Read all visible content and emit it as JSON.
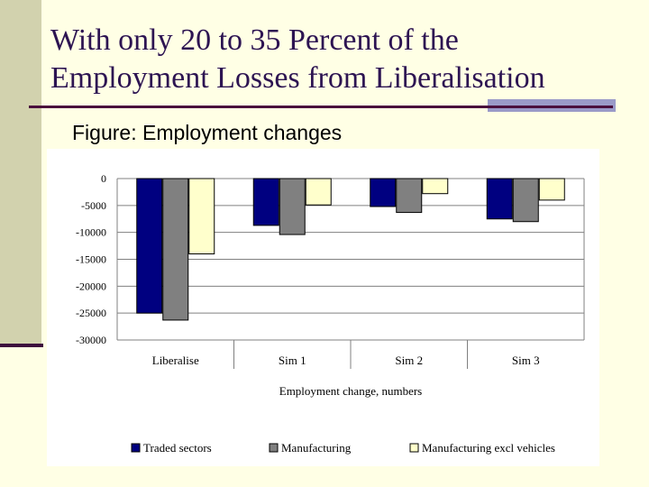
{
  "slide": {
    "title_line1": "With only 20 to 35 Percent of  the",
    "title_line2": "Employment Losses from Liberalisation",
    "subtitle": "Figure: Employment changes"
  },
  "chart_data": {
    "type": "bar",
    "title": "",
    "xlabel": "Employment change, numbers",
    "ylabel": "",
    "ylim": [
      -30000,
      0
    ],
    "yticks": [
      0,
      -5000,
      -10000,
      -15000,
      -20000,
      -25000,
      -30000
    ],
    "categories": [
      "Liberalise",
      "Sim 1",
      "Sim 2",
      "Sim 3"
    ],
    "series": [
      {
        "name": "Traded sectors",
        "color": "#000080",
        "values": [
          -25000,
          -8700,
          -5200,
          -7500
        ]
      },
      {
        "name": "Manufacturing",
        "color": "#808080",
        "values": [
          -26300,
          -10400,
          -6300,
          -8000
        ]
      },
      {
        "name": "Manufacturing excl vehicles",
        "color": "#FFFFCC",
        "values": [
          -14000,
          -4900,
          -2800,
          -4000
        ]
      }
    ],
    "grid": true,
    "legend_position": "bottom"
  }
}
